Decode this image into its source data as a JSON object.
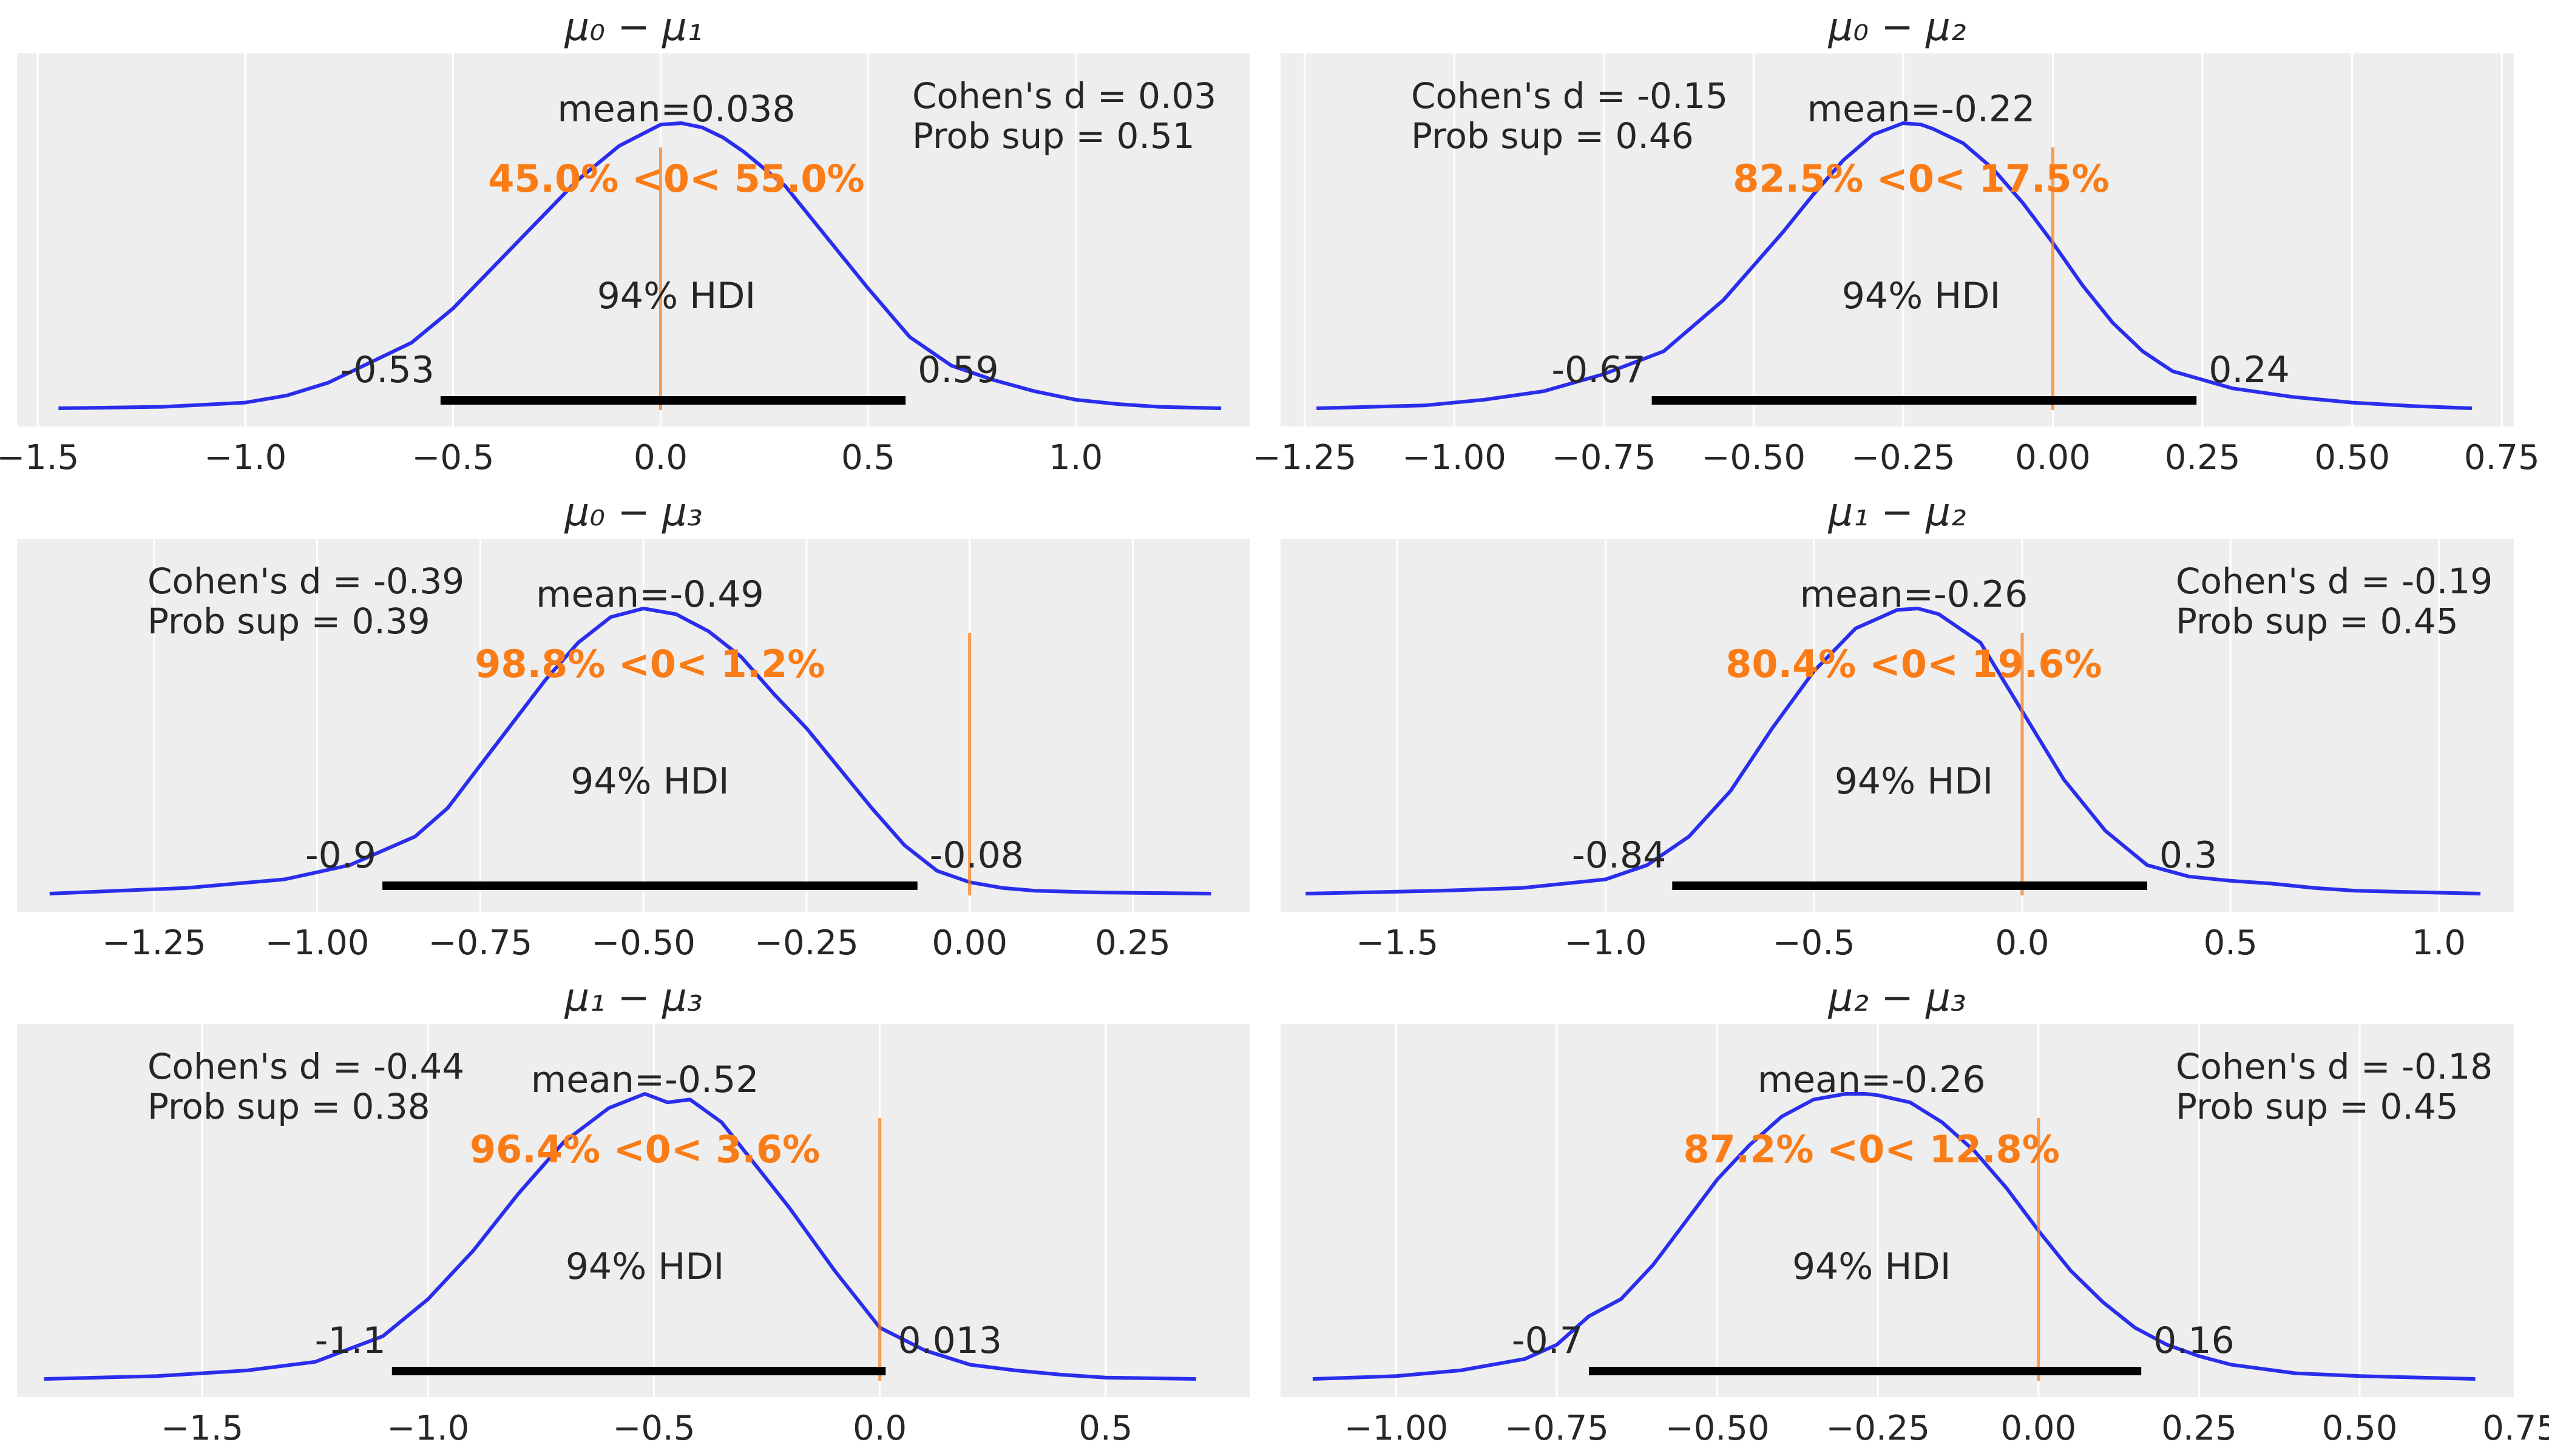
{
  "chart_data": [
    {
      "type": "area",
      "title": "μ₀ − μ₁",
      "xlim": [
        -1.55,
        1.42
      ],
      "xticks": [
        -1.5,
        -1.0,
        -0.5,
        0.0,
        0.5,
        1.0
      ],
      "xtick_labels": [
        "−1.5",
        "−1.0",
        "−0.5",
        "0.0",
        "0.5",
        "1.0"
      ],
      "grid": true,
      "density": {
        "x": [
          -1.45,
          -1.2,
          -1.0,
          -0.9,
          -0.8,
          -0.7,
          -0.6,
          -0.5,
          -0.4,
          -0.3,
          -0.2,
          -0.1,
          0.0,
          0.05,
          0.1,
          0.15,
          0.2,
          0.3,
          0.4,
          0.5,
          0.6,
          0.7,
          0.8,
          0.9,
          1.0,
          1.1,
          1.2,
          1.35
        ],
        "y": [
          0.0,
          0.005,
          0.02,
          0.045,
          0.09,
          0.16,
          0.23,
          0.35,
          0.5,
          0.65,
          0.8,
          0.92,
          0.995,
          1.0,
          0.985,
          0.95,
          0.9,
          0.78,
          0.6,
          0.42,
          0.25,
          0.15,
          0.1,
          0.06,
          0.03,
          0.015,
          0.005,
          0.0
        ]
      },
      "hdi": {
        "low": -0.53,
        "high": 0.59,
        "low_label": "-0.53",
        "high_label": "0.59",
        "label": "94% HDI"
      },
      "mean_label": "mean=0.038",
      "mean_x": 0.038,
      "ref_val": 0.0,
      "ref_label": "45.0% <0< 55.0%",
      "annotation": [
        "Cohen's d = 0.03",
        "Prob sup = 0.51"
      ],
      "annotation_pos": "right"
    },
    {
      "type": "area",
      "title": "μ₀ − μ₂",
      "xlim": [
        -1.29,
        0.77
      ],
      "xticks": [
        -1.25,
        -1.0,
        -0.75,
        -0.5,
        -0.25,
        0.0,
        0.25,
        0.5,
        0.75
      ],
      "xtick_labels": [
        "−1.25",
        "−1.00",
        "−0.75",
        "−0.50",
        "−0.25",
        "0.00",
        "0.25",
        "0.50",
        "0.75"
      ],
      "grid": true,
      "density": {
        "x": [
          -1.23,
          -1.05,
          -0.95,
          -0.85,
          -0.75,
          -0.65,
          -0.55,
          -0.5,
          -0.45,
          -0.4,
          -0.35,
          -0.3,
          -0.25,
          -0.22,
          -0.2,
          -0.15,
          -0.1,
          -0.05,
          0.0,
          0.05,
          0.1,
          0.15,
          0.2,
          0.3,
          0.4,
          0.5,
          0.6,
          0.7
        ],
        "y": [
          0.0,
          0.01,
          0.03,
          0.06,
          0.12,
          0.2,
          0.38,
          0.5,
          0.62,
          0.75,
          0.87,
          0.96,
          1.0,
          0.995,
          0.98,
          0.93,
          0.84,
          0.72,
          0.58,
          0.43,
          0.3,
          0.2,
          0.13,
          0.07,
          0.04,
          0.02,
          0.008,
          0.0
        ]
      },
      "hdi": {
        "low": -0.67,
        "high": 0.24,
        "low_label": "-0.67",
        "high_label": "0.24",
        "label": "94% HDI"
      },
      "mean_label": "mean=-0.22",
      "mean_x": -0.22,
      "ref_val": 0.0,
      "ref_label": "82.5% <0< 17.5%",
      "annotation": [
        "Cohen's d = -0.15",
        "Prob sup = 0.46"
      ],
      "annotation_pos": "left"
    },
    {
      "type": "area",
      "title": "μ₀ − μ₃",
      "xlim": [
        -1.46,
        0.43
      ],
      "xticks": [
        -1.25,
        -1.0,
        -0.75,
        -0.5,
        -0.25,
        0.0,
        0.25
      ],
      "xtick_labels": [
        "−1.25",
        "−1.00",
        "−0.75",
        "−0.50",
        "−0.25",
        "0.00",
        "0.25"
      ],
      "grid": true,
      "density": {
        "x": [
          -1.41,
          -1.2,
          -1.05,
          -0.95,
          -0.85,
          -0.8,
          -0.75,
          -0.7,
          -0.65,
          -0.6,
          -0.55,
          -0.5,
          -0.45,
          -0.4,
          -0.35,
          -0.3,
          -0.25,
          -0.2,
          -0.15,
          -0.1,
          -0.05,
          0.0,
          0.05,
          0.1,
          0.2,
          0.37
        ],
        "y": [
          0.0,
          0.02,
          0.05,
          0.1,
          0.2,
          0.3,
          0.45,
          0.6,
          0.75,
          0.88,
          0.97,
          1.0,
          0.98,
          0.92,
          0.83,
          0.7,
          0.58,
          0.44,
          0.3,
          0.17,
          0.08,
          0.04,
          0.02,
          0.01,
          0.004,
          0.0
        ]
      },
      "hdi": {
        "low": -0.9,
        "high": -0.08,
        "low_label": "-0.9",
        "high_label": "-0.08",
        "label": "94% HDI"
      },
      "mean_label": "mean=-0.49",
      "mean_x": -0.49,
      "ref_val": 0.0,
      "ref_label": "98.8% <0< 1.2%",
      "annotation": [
        "Cohen's d = -0.39",
        "Prob sup = 0.39"
      ],
      "annotation_pos": "left"
    },
    {
      "type": "area",
      "title": "μ₁ − μ₂",
      "xlim": [
        -1.78,
        1.18
      ],
      "xticks": [
        -1.5,
        -1.0,
        -0.5,
        0.0,
        0.5,
        1.0
      ],
      "xtick_labels": [
        "−1.5",
        "−1.0",
        "−0.5",
        "0.0",
        "0.5",
        "1.0"
      ],
      "grid": true,
      "density": {
        "x": [
          -1.72,
          -1.4,
          -1.2,
          -1.0,
          -0.9,
          -0.8,
          -0.7,
          -0.6,
          -0.5,
          -0.4,
          -0.3,
          -0.25,
          -0.2,
          -0.1,
          0.0,
          0.1,
          0.2,
          0.3,
          0.4,
          0.5,
          0.6,
          0.7,
          0.8,
          1.1
        ],
        "y": [
          0.0,
          0.01,
          0.02,
          0.05,
          0.1,
          0.2,
          0.36,
          0.58,
          0.78,
          0.93,
          0.995,
          1.0,
          0.98,
          0.88,
          0.64,
          0.4,
          0.22,
          0.1,
          0.06,
          0.045,
          0.035,
          0.02,
          0.01,
          0.0
        ]
      },
      "hdi": {
        "low": -0.84,
        "high": 0.3,
        "low_label": "-0.84",
        "high_label": "0.3",
        "label": "94% HDI"
      },
      "mean_label": "mean=-0.26",
      "mean_x": -0.26,
      "ref_val": 0.0,
      "ref_label": "80.4% <0< 19.6%",
      "annotation": [
        "Cohen's d = -0.19",
        "Prob sup = 0.45"
      ],
      "annotation_pos": "right"
    },
    {
      "type": "area",
      "title": "μ₁ − μ₃",
      "xlim": [
        -1.91,
        0.82
      ],
      "xticks": [
        -1.5,
        -1.0,
        -0.5,
        0.0,
        0.5
      ],
      "xtick_labels": [
        "−1.5",
        "−1.0",
        "−0.5",
        "0.0",
        "0.5"
      ],
      "grid": true,
      "density": {
        "x": [
          -1.85,
          -1.6,
          -1.4,
          -1.25,
          -1.1,
          -1.0,
          -0.9,
          -0.8,
          -0.7,
          -0.6,
          -0.52,
          -0.47,
          -0.42,
          -0.35,
          -0.3,
          -0.2,
          -0.1,
          0.0,
          0.1,
          0.2,
          0.3,
          0.4,
          0.5,
          0.7
        ],
        "y": [
          0.0,
          0.01,
          0.03,
          0.06,
          0.15,
          0.28,
          0.45,
          0.65,
          0.83,
          0.95,
          1.0,
          0.97,
          0.98,
          0.9,
          0.8,
          0.6,
          0.38,
          0.18,
          0.1,
          0.05,
          0.03,
          0.015,
          0.005,
          0.0
        ]
      },
      "hdi": {
        "low": -1.08,
        "high": 0.013,
        "low_label": "-1.1",
        "high_label": "0.013",
        "label": "94% HDI"
      },
      "mean_label": "mean=-0.52",
      "mean_x": -0.52,
      "ref_val": 0.0,
      "ref_label": "96.4% <0< 3.6%",
      "annotation": [
        "Cohen's d = -0.44",
        "Prob sup = 0.38"
      ],
      "annotation_pos": "left"
    },
    {
      "type": "area",
      "title": "μ₂ − μ₃",
      "xlim": [
        -1.18,
        0.74
      ],
      "xticks": [
        -1.0,
        -0.75,
        -0.5,
        -0.25,
        0.0,
        0.25,
        0.5,
        0.75
      ],
      "xtick_labels": [
        "−1.00",
        "−0.75",
        "−0.50",
        "−0.25",
        "0.00",
        "0.25",
        "0.50",
        "0.75"
      ],
      "grid": true,
      "density": {
        "x": [
          -1.13,
          -1.0,
          -0.9,
          -0.8,
          -0.75,
          -0.7,
          -0.65,
          -0.6,
          -0.55,
          -0.5,
          -0.45,
          -0.4,
          -0.35,
          -0.3,
          -0.27,
          -0.25,
          -0.2,
          -0.15,
          -0.1,
          -0.05,
          0.0,
          0.05,
          0.1,
          0.15,
          0.2,
          0.25,
          0.3,
          0.4,
          0.5,
          0.68
        ],
        "y": [
          0.0,
          0.01,
          0.03,
          0.07,
          0.12,
          0.22,
          0.28,
          0.4,
          0.55,
          0.7,
          0.82,
          0.92,
          0.98,
          1.0,
          1.0,
          0.995,
          0.97,
          0.9,
          0.8,
          0.67,
          0.52,
          0.38,
          0.27,
          0.18,
          0.12,
          0.08,
          0.05,
          0.02,
          0.01,
          0.0
        ]
      },
      "hdi": {
        "low": -0.7,
        "high": 0.16,
        "low_label": "-0.7",
        "high_label": "0.16",
        "label": "94% HDI"
      },
      "mean_label": "mean=-0.26",
      "mean_x": -0.26,
      "ref_val": 0.0,
      "ref_label": "87.2% <0< 12.8%",
      "annotation": [
        "Cohen's d = -0.18",
        "Prob sup = 0.45"
      ],
      "annotation_pos": "right"
    }
  ],
  "colors": {
    "panel_bg": "#eeeeee",
    "grid": "#ffffff",
    "density_line": "#2a2eec",
    "ref_line": "#fa7c17",
    "ref_text": "#fa7c17",
    "hdi_bar": "#000000",
    "text": "#262626"
  }
}
